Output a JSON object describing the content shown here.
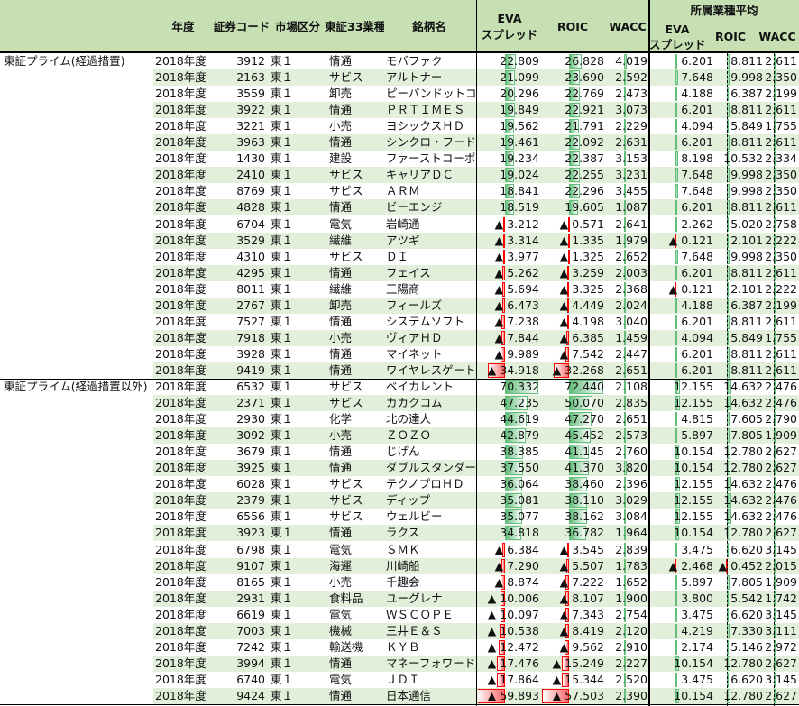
{
  "header": {
    "year": "年度",
    "code": "証券コード",
    "market": "市場区分",
    "industry": "東証33業種",
    "name": "銘柄名",
    "eva_line1": "EVA",
    "eva_line2": "スプレッド",
    "roic": "ROIC",
    "wacc": "WACC",
    "industry_avg": "所属業種平均",
    "avg_eva_line1": "EVA",
    "avg_eva_line2": "スプレッド",
    "avg_roic": "ROIC",
    "avg_wacc": "WACC"
  },
  "colors": {
    "positive_bar": "#63be7b",
    "negative_bar": "#f8696b",
    "header_bg": "#c6e0b4",
    "band_bg": "#e2efda"
  },
  "negative_marker": "▲",
  "groups": [
    {
      "label": "東証プライム(経過措置)",
      "rows": [
        [
          "2018年度",
          "3912",
          "東１",
          "情通",
          "モバファク",
          22.809,
          26.828,
          4.019,
          6.201,
          8.811,
          2.611
        ],
        [
          "2018年度",
          "2163",
          "東１",
          "サビス",
          "アルトナー",
          21.099,
          23.69,
          2.592,
          7.648,
          9.998,
          2.35
        ],
        [
          "2018年度",
          "3559",
          "東１",
          "卸売",
          "ピーバンドットコム",
          20.296,
          22.769,
          2.473,
          4.188,
          6.387,
          2.199
        ],
        [
          "2018年度",
          "3922",
          "東１",
          "情通",
          "ＰＲＴＩＭＥＳ",
          19.849,
          22.921,
          3.073,
          6.201,
          8.811,
          2.611
        ],
        [
          "2018年度",
          "3221",
          "東１",
          "小売",
          "ヨシックスＨＤ",
          19.562,
          21.791,
          2.229,
          4.094,
          5.849,
          1.755
        ],
        [
          "2018年度",
          "3963",
          "東１",
          "情通",
          "シンクロ・フード",
          19.461,
          22.092,
          2.631,
          6.201,
          8.811,
          2.611
        ],
        [
          "2018年度",
          "1430",
          "東１",
          "建設",
          "ファーストコーポ",
          19.234,
          22.387,
          3.153,
          8.198,
          10.532,
          2.334
        ],
        [
          "2018年度",
          "2410",
          "東１",
          "サビス",
          "キャリアＤＣ",
          19.024,
          22.255,
          3.231,
          7.648,
          9.998,
          2.35
        ],
        [
          "2018年度",
          "8769",
          "東１",
          "サビス",
          "ＡＲＭ",
          18.841,
          22.296,
          3.455,
          7.648,
          9.998,
          2.35
        ],
        [
          "2018年度",
          "4828",
          "東１",
          "情通",
          "ビーエンジ",
          18.519,
          19.605,
          1.087,
          6.201,
          8.811,
          2.611
        ],
        [
          "2018年度",
          "6704",
          "東１",
          "電気",
          "岩崎通",
          -3.212,
          -0.571,
          2.641,
          2.262,
          5.02,
          2.758
        ],
        [
          "2018年度",
          "3529",
          "東１",
          "繊維",
          "アツギ",
          -3.314,
          -1.335,
          1.979,
          -0.121,
          2.101,
          2.222
        ],
        [
          "2018年度",
          "4310",
          "東１",
          "サビス",
          "ＤＩ",
          -3.977,
          -1.325,
          2.652,
          7.648,
          9.998,
          2.35
        ],
        [
          "2018年度",
          "4295",
          "東１",
          "情通",
          "フェイス",
          -5.262,
          -3.259,
          2.003,
          6.201,
          8.811,
          2.611
        ],
        [
          "2018年度",
          "8011",
          "東１",
          "繊維",
          "三陽商",
          -5.694,
          -3.325,
          2.368,
          -0.121,
          2.101,
          2.222
        ],
        [
          "2018年度",
          "2767",
          "東１",
          "卸売",
          "フィールズ",
          -6.473,
          -4.449,
          2.024,
          4.188,
          6.387,
          2.199
        ],
        [
          "2018年度",
          "7527",
          "東１",
          "情通",
          "システムソフト",
          -7.238,
          -4.198,
          3.04,
          6.201,
          8.811,
          2.611
        ],
        [
          "2018年度",
          "7918",
          "東１",
          "小売",
          "ヴィアＨＤ",
          -7.844,
          -6.385,
          1.459,
          4.094,
          5.849,
          1.755
        ],
        [
          "2018年度",
          "3928",
          "東１",
          "情通",
          "マイネット",
          -9.989,
          -7.542,
          2.447,
          6.201,
          8.811,
          2.611
        ],
        [
          "2018年度",
          "9419",
          "東１",
          "情通",
          "ワイヤレスゲート",
          -34.918,
          -32.268,
          2.651,
          6.201,
          8.811,
          2.611
        ]
      ]
    },
    {
      "label": "東証プライム(経過措置以外)",
      "rows": [
        [
          "2018年度",
          "6532",
          "東１",
          "サビス",
          "ベイカレント",
          70.332,
          72.44,
          2.108,
          12.155,
          14.632,
          2.476
        ],
        [
          "2018年度",
          "2371",
          "東１",
          "サビス",
          "カカクコム",
          47.235,
          50.07,
          2.835,
          12.155,
          14.632,
          2.476
        ],
        [
          "2018年度",
          "2930",
          "東１",
          "化学",
          "北の達人",
          44.619,
          47.27,
          2.651,
          4.815,
          7.605,
          2.79
        ],
        [
          "2018年度",
          "3092",
          "東１",
          "小売",
          "ＺＯＺＯ",
          42.879,
          45.452,
          2.573,
          5.897,
          7.805,
          1.909
        ],
        [
          "2018年度",
          "3679",
          "東１",
          "情通",
          "じげん",
          38.385,
          41.145,
          2.76,
          10.154,
          12.78,
          2.627
        ],
        [
          "2018年度",
          "3925",
          "東１",
          "情通",
          "ダブルスタンダード",
          37.55,
          41.37,
          3.82,
          10.154,
          12.78,
          2.627
        ],
        [
          "2018年度",
          "6028",
          "東１",
          "サビス",
          "テクノプロＨＤ",
          36.064,
          38.46,
          2.396,
          12.155,
          14.632,
          2.476
        ],
        [
          "2018年度",
          "2379",
          "東１",
          "サビス",
          "ディップ",
          35.081,
          38.11,
          3.029,
          12.155,
          14.632,
          2.476
        ],
        [
          "2018年度",
          "6556",
          "東１",
          "サビス",
          "ウェルビー",
          35.077,
          38.162,
          3.084,
          12.155,
          14.632,
          2.476
        ],
        [
          "2018年度",
          "3923",
          "東１",
          "情通",
          "ラクス",
          34.818,
          36.782,
          1.964,
          10.154,
          12.78,
          2.627
        ],
        [
          "2018年度",
          "6798",
          "東１",
          "電気",
          "ＳＭＫ",
          -6.384,
          -3.545,
          2.839,
          3.475,
          6.62,
          3.145
        ],
        [
          "2018年度",
          "9107",
          "東１",
          "海運",
          "川崎船",
          -7.29,
          -5.507,
          1.783,
          -2.468,
          -0.452,
          2.015
        ],
        [
          "2018年度",
          "8165",
          "東１",
          "小売",
          "千趣会",
          -8.874,
          -7.222,
          1.652,
          5.897,
          7.805,
          1.909
        ],
        [
          "2018年度",
          "2931",
          "東１",
          "食料品",
          "ユーグレナ",
          -10.006,
          -8.107,
          1.9,
          3.8,
          5.542,
          1.742
        ],
        [
          "2018年度",
          "6619",
          "東１",
          "電気",
          "ＷＳＣＯＰＥ",
          -10.097,
          -7.343,
          2.754,
          3.475,
          6.62,
          3.145
        ],
        [
          "2018年度",
          "7003",
          "東１",
          "機械",
          "三井Ｅ＆Ｓ",
          -10.538,
          -8.419,
          2.12,
          4.219,
          7.33,
          3.111
        ],
        [
          "2018年度",
          "7242",
          "東１",
          "輸送機",
          "ＫＹＢ",
          -12.472,
          -9.562,
          2.91,
          2.174,
          5.146,
          2.972
        ],
        [
          "2018年度",
          "3994",
          "東１",
          "情通",
          "マネーフォワード",
          -17.476,
          -15.249,
          2.227,
          10.154,
          12.78,
          2.627
        ],
        [
          "2018年度",
          "6740",
          "東１",
          "電気",
          "ＪＤＩ",
          -17.864,
          -15.344,
          2.52,
          3.475,
          6.62,
          3.145
        ],
        [
          "2018年度",
          "9424",
          "東１",
          "情通",
          "日本通信",
          -59.893,
          -57.503,
          2.39,
          10.154,
          12.78,
          2.627
        ]
      ]
    }
  ]
}
